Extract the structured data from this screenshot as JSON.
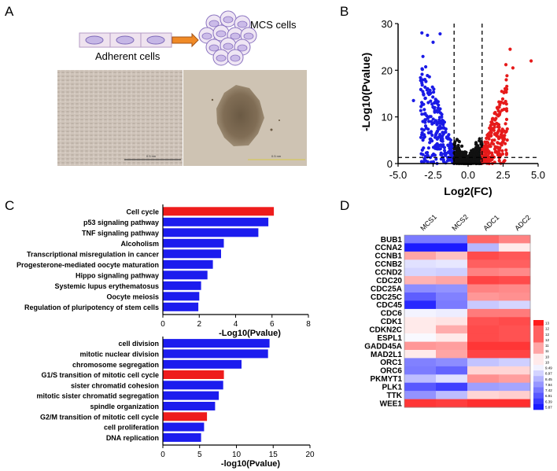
{
  "panels": {
    "a": "A",
    "b": "B",
    "c": "C",
    "d": "D"
  },
  "panel_a": {
    "adherent_label": "Adherent cells",
    "mcs_label": "MCS cells",
    "scale_left": "0.5 nm",
    "scale_right": "0.5 nm"
  },
  "chart_data": [
    {
      "id": "volcano",
      "type": "scatter",
      "title": "",
      "xlabel": "Log2(FC)",
      "ylabel": "-Log10(Pvalue)",
      "xlim": [
        -5.0,
        5.0
      ],
      "ylim": [
        0,
        30
      ],
      "xticks": [
        "-5.0",
        "-2.5",
        "0.0",
        "2.5",
        "5.0"
      ],
      "yticks": [
        "0",
        "10",
        "20",
        "30"
      ],
      "fc_threshold": [
        -1,
        1
      ],
      "p_threshold": 1.3,
      "series": [
        {
          "name": "down",
          "color": "#1a1ae6",
          "seed": 11,
          "count": 260
        },
        {
          "name": "ns",
          "color": "#111111",
          "seed": 23,
          "count": 520
        },
        {
          "name": "up",
          "color": "#e61a1a",
          "seed": 37,
          "count": 220
        }
      ],
      "outliers": [
        {
          "x": -3.3,
          "y": 28.0
        },
        {
          "x": -2.9,
          "y": 27.5
        },
        {
          "x": -2.0,
          "y": 27.8
        },
        {
          "x": -2.5,
          "y": 26.0
        },
        {
          "x": -3.9,
          "y": 13.5
        },
        {
          "x": 3.0,
          "y": 24.5
        },
        {
          "x": 4.5,
          "y": 22.0
        },
        {
          "x": 3.2,
          "y": 20.5
        },
        {
          "x": 2.7,
          "y": 21.2
        }
      ]
    },
    {
      "id": "kegg",
      "type": "bar",
      "orientation": "horizontal",
      "xlabel": "-Log10(Pvalue)",
      "xlim": [
        0,
        8
      ],
      "xticks": [
        "0",
        "2",
        "4",
        "6",
        "8"
      ],
      "categories": [
        "Cell cycle",
        "p53 signaling pathway",
        "TNF signaling pathway",
        "Alcoholism",
        "Transcriptional misregulation in cancer",
        "Progesterone-mediated oocyte maturation",
        "Hippo signaling pathway",
        "Systemic lupus erythematosus",
        "Oocyte meiosis",
        "Regulation of pluripotency of stem cells"
      ],
      "values": [
        6.1,
        5.8,
        5.25,
        3.35,
        3.2,
        2.75,
        2.45,
        2.1,
        2.0,
        1.95
      ],
      "colors": [
        "#ee1c1c",
        "#1c1cee",
        "#1c1cee",
        "#1c1cee",
        "#1c1cee",
        "#1c1cee",
        "#1c1cee",
        "#1c1cee",
        "#1c1cee",
        "#1c1cee"
      ]
    },
    {
      "id": "go",
      "type": "bar",
      "orientation": "horizontal",
      "xlabel": "-log10(Pvalue)",
      "xlim": [
        0,
        20
      ],
      "xticks": [
        "0",
        "5",
        "10",
        "15",
        "20"
      ],
      "categories": [
        "cell division",
        "mitotic nuclear division",
        "chromosome segregation",
        "G1/S transition of mitotic cell cycle",
        "sister chromatid cohesion",
        "mitotic sister chromatid segregation",
        "spindle organization",
        "G2/M transition of mitotic cell cycle",
        "cell proliferation",
        "DNA replication"
      ],
      "values": [
        14.5,
        14.3,
        10.7,
        8.3,
        8.2,
        7.6,
        7.1,
        6.0,
        5.6,
        5.2
      ],
      "colors": [
        "#1c1cee",
        "#1c1cee",
        "#1c1cee",
        "#ee1c1c",
        "#1c1cee",
        "#1c1cee",
        "#1c1cee",
        "#ee1c1c",
        "#1c1cee",
        "#1c1cee"
      ]
    },
    {
      "id": "heatmap",
      "type": "heatmap",
      "columns": [
        "MCS1",
        "MCS2",
        "ADC1",
        "ADC2"
      ],
      "rows": [
        "BUB1",
        "CCNA2",
        "CCNB1",
        "CCNB2",
        "CCND2",
        "CDC20",
        "CDC25A",
        "CDC25C",
        "CDC45",
        "CDC6",
        "CDK1",
        "CDKN2C",
        "ESPL1",
        "GADD45A",
        "MAD2L1",
        "ORC1",
        "ORC6",
        "PKMYT1",
        "PLK1",
        "TTK",
        "WEE1"
      ],
      "values": [
        [
          7.5,
          7.5,
          11.9,
          11.5
        ],
        [
          5.9,
          5.9,
          8.5,
          10.0
        ],
        [
          11.0,
          10.6,
          12.3,
          12.1
        ],
        [
          9.2,
          9.3,
          12.0,
          12.0
        ],
        [
          9.0,
          8.9,
          11.5,
          11.4
        ],
        [
          10.8,
          11.0,
          12.4,
          12.3
        ],
        [
          7.8,
          7.9,
          11.5,
          11.4
        ],
        [
          7.0,
          7.6,
          11.2,
          11.3
        ],
        [
          6.1,
          7.5,
          8.8,
          9.0
        ],
        [
          9.5,
          9.4,
          11.6,
          11.6
        ],
        [
          10.0,
          10.1,
          12.2,
          12.3
        ],
        [
          10.0,
          10.9,
          12.3,
          12.2
        ],
        [
          9.6,
          10.0,
          12.3,
          12.2
        ],
        [
          11.2,
          11.1,
          12.6,
          12.6
        ],
        [
          10.0,
          11.0,
          12.4,
          12.4
        ],
        [
          7.6,
          7.8,
          8.7,
          8.9
        ],
        [
          7.5,
          7.1,
          10.3,
          10.3
        ],
        [
          8.6,
          9.2,
          11.3,
          11.1
        ],
        [
          6.9,
          6.5,
          8.1,
          8.2
        ],
        [
          7.9,
          8.6,
          10.3,
          10.4
        ],
        [
          12.6,
          12.5,
          12.7,
          12.7
        ]
      ],
      "scale_labels": [
        "13",
        "12",
        "12",
        "12",
        "11",
        "11",
        "10",
        "10",
        "9.49",
        "8.97",
        "8.45",
        "7.94",
        "7.42",
        "6.91",
        "6.39",
        "5.87"
      ]
    }
  ]
}
